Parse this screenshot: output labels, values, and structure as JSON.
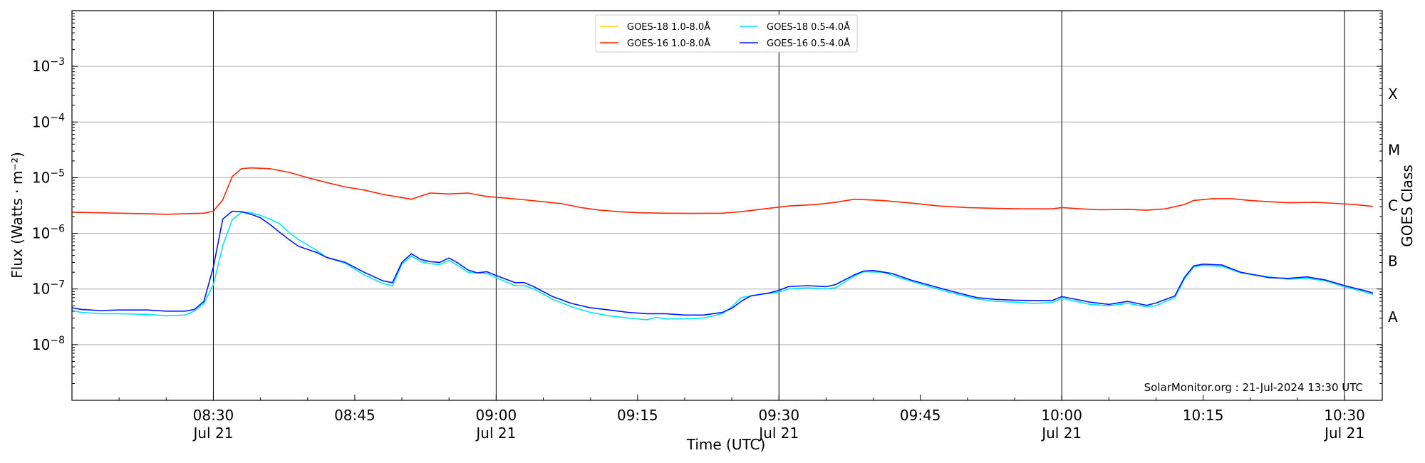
{
  "chart_data": {
    "type": "line",
    "title": "",
    "xlabel": "Time (UTC)",
    "ylabel": "Flux (Watts · m⁻²)",
    "ylabel_right": "GOES Class",
    "y_scale": "log",
    "ylim": [
      1e-09,
      0.01
    ],
    "xlim": [
      "2024-07-21 08:15",
      "2024-07-21 10:34"
    ],
    "grid": "horizontal at decades",
    "legend_position": "top-center",
    "credit": "SolarMonitor.org : 21-Jul-2024 13:30 UTC",
    "x_ticks": [
      {
        "time": "08:30",
        "time_label": "08:30",
        "date_label": "Jul 21",
        "major": true
      },
      {
        "time": "08:45",
        "time_label": "08:45",
        "date_label": "",
        "major": false
      },
      {
        "time": "09:00",
        "time_label": "09:00",
        "date_label": "Jul 21",
        "major": true
      },
      {
        "time": "09:15",
        "time_label": "09:15",
        "date_label": "",
        "major": false
      },
      {
        "time": "09:30",
        "time_label": "09:30",
        "date_label": "Jul 21",
        "major": true
      },
      {
        "time": "09:45",
        "time_label": "09:45",
        "date_label": "",
        "major": false
      },
      {
        "time": "10:00",
        "time_label": "10:00",
        "date_label": "Jul 21",
        "major": true
      },
      {
        "time": "10:15",
        "time_label": "10:15",
        "date_label": "",
        "major": false
      },
      {
        "time": "10:30",
        "time_label": "10:30",
        "date_label": "Jul 21",
        "major": true
      }
    ],
    "y_ticks": [
      {
        "value": 1e-08,
        "base": "10",
        "exp": "−8"
      },
      {
        "value": 1e-07,
        "base": "10",
        "exp": "−7"
      },
      {
        "value": 1e-06,
        "base": "10",
        "exp": "−6"
      },
      {
        "value": 1e-05,
        "base": "10",
        "exp": "−5"
      },
      {
        "value": 0.0001,
        "base": "10",
        "exp": "−4"
      },
      {
        "value": 0.001,
        "base": "10",
        "exp": "−3"
      }
    ],
    "goes_classes": [
      {
        "label": "A",
        "value": 1e-08
      },
      {
        "label": "B",
        "value": 1e-07
      },
      {
        "label": "C",
        "value": 1e-06
      },
      {
        "label": "M",
        "value": 1e-05
      },
      {
        "label": "X",
        "value": 0.0001
      }
    ],
    "series": [
      {
        "name": "GOES-18 1.0-8.0Å",
        "color": "#ffd700",
        "points": []
      },
      {
        "name": "GOES-16 1.0-8.0Å",
        "color": "#ff2400",
        "points": [
          [
            "08:15",
            2.4e-06
          ],
          [
            "08:20",
            2.3e-06
          ],
          [
            "08:23",
            2.25e-06
          ],
          [
            "08:25",
            2.2e-06
          ],
          [
            "08:29",
            2.3e-06
          ],
          [
            "08:30",
            2.5e-06
          ],
          [
            "08:31",
            4e-06
          ],
          [
            "08:32",
            1.05e-05
          ],
          [
            "08:33",
            1.45e-05
          ],
          [
            "08:34",
            1.5e-05
          ],
          [
            "08:36",
            1.45e-05
          ],
          [
            "08:38",
            1.25e-05
          ],
          [
            "08:40",
            1e-05
          ],
          [
            "08:42",
            8.2e-06
          ],
          [
            "08:44",
            6.8e-06
          ],
          [
            "08:46",
            6e-06
          ],
          [
            "08:48",
            5e-06
          ],
          [
            "08:50",
            4.4e-06
          ],
          [
            "08:51",
            4.1e-06
          ],
          [
            "08:53",
            5.3e-06
          ],
          [
            "08:55",
            5.1e-06
          ],
          [
            "08:57",
            5.3e-06
          ],
          [
            "08:59",
            4.6e-06
          ],
          [
            "09:01",
            4.3e-06
          ],
          [
            "09:03",
            4e-06
          ],
          [
            "09:05",
            3.7e-06
          ],
          [
            "09:07",
            3.4e-06
          ],
          [
            "09:09",
            2.9e-06
          ],
          [
            "09:11",
            2.6e-06
          ],
          [
            "09:13",
            2.45e-06
          ],
          [
            "09:15",
            2.35e-06
          ],
          [
            "09:18",
            2.3e-06
          ],
          [
            "09:21",
            2.28e-06
          ],
          [
            "09:24",
            2.3e-06
          ],
          [
            "09:26",
            2.45e-06
          ],
          [
            "09:28",
            2.7e-06
          ],
          [
            "09:31",
            3.1e-06
          ],
          [
            "09:34",
            3.3e-06
          ],
          [
            "09:36",
            3.6e-06
          ],
          [
            "09:38",
            4.1e-06
          ],
          [
            "09:41",
            3.9e-06
          ],
          [
            "09:44",
            3.5e-06
          ],
          [
            "09:47",
            3.1e-06
          ],
          [
            "09:50",
            2.9e-06
          ],
          [
            "09:53",
            2.8e-06
          ],
          [
            "09:56",
            2.75e-06
          ],
          [
            "09:59",
            2.75e-06
          ],
          [
            "10:00",
            2.9e-06
          ],
          [
            "10:02",
            2.75e-06
          ],
          [
            "10:04",
            2.65e-06
          ],
          [
            "10:07",
            2.7e-06
          ],
          [
            "10:09",
            2.6e-06
          ],
          [
            "10:11",
            2.75e-06
          ],
          [
            "10:13",
            3.3e-06
          ],
          [
            "10:14",
            3.9e-06
          ],
          [
            "10:16",
            4.2e-06
          ],
          [
            "10:18",
            4.2e-06
          ],
          [
            "10:20",
            3.9e-06
          ],
          [
            "10:22",
            3.7e-06
          ],
          [
            "10:24",
            3.55e-06
          ],
          [
            "10:27",
            3.6e-06
          ],
          [
            "10:29",
            3.45e-06
          ],
          [
            "10:31",
            3.3e-06
          ],
          [
            "10:33",
            3.05e-06
          ]
        ]
      },
      {
        "name": "GOES-18 0.5-4.0Å",
        "color": "#00e5ff",
        "points": [
          [
            "08:15",
            4.1e-08
          ],
          [
            "08:16",
            3.8e-08
          ],
          [
            "08:18",
            3.6e-08
          ],
          [
            "08:20",
            3.6e-08
          ],
          [
            "08:23",
            3.5e-08
          ],
          [
            "08:25",
            3.3e-08
          ],
          [
            "08:27",
            3.4e-08
          ],
          [
            "08:28",
            4e-08
          ],
          [
            "08:29",
            5.5e-08
          ],
          [
            "08:30",
            1.2e-07
          ],
          [
            "08:31",
            6e-07
          ],
          [
            "08:32",
            1.75e-06
          ],
          [
            "08:33",
            2.4e-06
          ],
          [
            "08:34",
            2.35e-06
          ],
          [
            "08:35",
            2.1e-06
          ],
          [
            "08:36",
            1.8e-06
          ],
          [
            "08:37",
            1.5e-06
          ],
          [
            "08:38",
            1.05e-06
          ],
          [
            "08:39",
            7.8e-07
          ],
          [
            "08:41",
            4.9e-07
          ],
          [
            "08:42",
            3.7e-07
          ],
          [
            "08:44",
            2.9e-07
          ],
          [
            "08:46",
            1.8e-07
          ],
          [
            "08:48",
            1.25e-07
          ],
          [
            "08:49",
            1.15e-07
          ],
          [
            "08:50",
            2.8e-07
          ],
          [
            "08:51",
            3.9e-07
          ],
          [
            "08:52",
            3.1e-07
          ],
          [
            "08:53",
            2.85e-07
          ],
          [
            "08:54",
            2.75e-07
          ],
          [
            "08:55",
            3.25e-07
          ],
          [
            "08:56",
            2.6e-07
          ],
          [
            "08:57",
            2e-07
          ],
          [
            "08:59",
            1.9e-07
          ],
          [
            "09:00",
            1.6e-07
          ],
          [
            "09:02",
            1.15e-07
          ],
          [
            "09:03",
            1.15e-07
          ],
          [
            "09:04",
            1e-07
          ],
          [
            "09:06",
            6.5e-08
          ],
          [
            "09:08",
            4.8e-08
          ],
          [
            "09:10",
            3.8e-08
          ],
          [
            "09:12",
            3.3e-08
          ],
          [
            "09:14",
            3e-08
          ],
          [
            "09:16",
            2.8e-08
          ],
          [
            "09:17",
            3.1e-08
          ],
          [
            "09:18",
            2.9e-08
          ],
          [
            "09:20",
            2.9e-08
          ],
          [
            "09:22",
            3e-08
          ],
          [
            "09:24",
            3.6e-08
          ],
          [
            "09:25",
            4.8e-08
          ],
          [
            "09:26",
            7e-08
          ],
          [
            "09:28",
            8e-08
          ],
          [
            "09:30",
            8.8e-08
          ],
          [
            "09:31",
            1e-07
          ],
          [
            "09:33",
            1.05e-07
          ],
          [
            "09:35",
            1e-07
          ],
          [
            "09:36",
            1.05e-07
          ],
          [
            "09:38",
            1.7e-07
          ],
          [
            "09:39",
            2.05e-07
          ],
          [
            "09:41",
            2e-07
          ],
          [
            "09:43",
            1.55e-07
          ],
          [
            "09:46",
            1.1e-07
          ],
          [
            "09:48",
            8.8e-08
          ],
          [
            "09:51",
            6.6e-08
          ],
          [
            "09:53",
            6e-08
          ],
          [
            "09:55",
            5.8e-08
          ],
          [
            "09:57",
            5.5e-08
          ],
          [
            "09:59",
            5.7e-08
          ],
          [
            "10:00",
            6.8e-08
          ],
          [
            "10:03",
            5.3e-08
          ],
          [
            "10:05",
            5e-08
          ],
          [
            "10:07",
            5.5e-08
          ],
          [
            "10:09",
            4.8e-08
          ],
          [
            "10:10",
            5e-08
          ],
          [
            "10:12",
            7e-08
          ],
          [
            "10:13",
            1.5e-07
          ],
          [
            "10:14",
            2.5e-07
          ],
          [
            "10:15",
            2.65e-07
          ],
          [
            "10:17",
            2.55e-07
          ],
          [
            "10:19",
            1.95e-07
          ],
          [
            "10:22",
            1.65e-07
          ],
          [
            "10:24",
            1.5e-07
          ],
          [
            "10:26",
            1.55e-07
          ],
          [
            "10:28",
            1.4e-07
          ],
          [
            "10:30",
            1.1e-07
          ],
          [
            "10:32",
            9e-08
          ],
          [
            "10:33",
            8e-08
          ]
        ]
      },
      {
        "name": "GOES-16 0.5-4.0Å",
        "color": "#0018ff",
        "points": [
          [
            "08:15",
            4.6e-08
          ],
          [
            "08:16",
            4.3e-08
          ],
          [
            "08:18",
            4.1e-08
          ],
          [
            "08:20",
            4.2e-08
          ],
          [
            "08:23",
            4.2e-08
          ],
          [
            "08:25",
            4e-08
          ],
          [
            "08:27",
            4e-08
          ],
          [
            "08:28",
            4.3e-08
          ],
          [
            "08:29",
            6e-08
          ],
          [
            "08:30",
            2.5e-07
          ],
          [
            "08:31",
            1.8e-06
          ],
          [
            "08:32",
            2.5e-06
          ],
          [
            "08:33",
            2.45e-06
          ],
          [
            "08:34",
            2.2e-06
          ],
          [
            "08:35",
            1.9e-06
          ],
          [
            "08:36",
            1.45e-06
          ],
          [
            "08:37",
            1.05e-06
          ],
          [
            "08:38",
            7.8e-07
          ],
          [
            "08:39",
            5.9e-07
          ],
          [
            "08:41",
            4.5e-07
          ],
          [
            "08:42",
            3.7e-07
          ],
          [
            "08:44",
            3e-07
          ],
          [
            "08:46",
            2e-07
          ],
          [
            "08:48",
            1.4e-07
          ],
          [
            "08:49",
            1.3e-07
          ],
          [
            "08:50",
            3e-07
          ],
          [
            "08:51",
            4.3e-07
          ],
          [
            "08:52",
            3.4e-07
          ],
          [
            "08:53",
            3.1e-07
          ],
          [
            "08:54",
            3e-07
          ],
          [
            "08:55",
            3.6e-07
          ],
          [
            "08:56",
            2.9e-07
          ],
          [
            "08:57",
            2.2e-07
          ],
          [
            "08:58",
            1.95e-07
          ],
          [
            "08:59",
            2.05e-07
          ],
          [
            "09:00",
            1.75e-07
          ],
          [
            "09:02",
            1.3e-07
          ],
          [
            "09:03",
            1.3e-07
          ],
          [
            "09:04",
            1.1e-07
          ],
          [
            "09:06",
            7.3e-08
          ],
          [
            "09:08",
            5.5e-08
          ],
          [
            "09:10",
            4.6e-08
          ],
          [
            "09:12",
            4.2e-08
          ],
          [
            "09:14",
            3.8e-08
          ],
          [
            "09:16",
            3.6e-08
          ],
          [
            "09:18",
            3.6e-08
          ],
          [
            "09:20",
            3.4e-08
          ],
          [
            "09:22",
            3.4e-08
          ],
          [
            "09:24",
            3.8e-08
          ],
          [
            "09:25",
            4.5e-08
          ],
          [
            "09:26",
            6e-08
          ],
          [
            "09:27",
            7.5e-08
          ],
          [
            "09:29",
            8.5e-08
          ],
          [
            "09:30",
            9.5e-08
          ],
          [
            "09:31",
            1.1e-07
          ],
          [
            "09:33",
            1.15e-07
          ],
          [
            "09:35",
            1.1e-07
          ],
          [
            "09:36",
            1.2e-07
          ],
          [
            "09:38",
            1.8e-07
          ],
          [
            "09:39",
            2.1e-07
          ],
          [
            "09:40",
            2.15e-07
          ],
          [
            "09:42",
            1.9e-07
          ],
          [
            "09:44",
            1.45e-07
          ],
          [
            "09:47",
            1.05e-07
          ],
          [
            "09:49",
            8.5e-08
          ],
          [
            "09:51",
            7e-08
          ],
          [
            "09:53",
            6.5e-08
          ],
          [
            "09:55",
            6.3e-08
          ],
          [
            "09:57",
            6.2e-08
          ],
          [
            "09:59",
            6.2e-08
          ],
          [
            "10:00",
            7.3e-08
          ],
          [
            "10:03",
            5.8e-08
          ],
          [
            "10:05",
            5.3e-08
          ],
          [
            "10:07",
            6e-08
          ],
          [
            "10:09",
            5.1e-08
          ],
          [
            "10:10",
            5.6e-08
          ],
          [
            "10:12",
            7.5e-08
          ],
          [
            "10:13",
            1.6e-07
          ],
          [
            "10:14",
            2.6e-07
          ],
          [
            "10:15",
            2.8e-07
          ],
          [
            "10:17",
            2.7e-07
          ],
          [
            "10:19",
            2e-07
          ],
          [
            "10:22",
            1.6e-07
          ],
          [
            "10:24",
            1.55e-07
          ],
          [
            "10:26",
            1.65e-07
          ],
          [
            "10:28",
            1.45e-07
          ],
          [
            "10:30",
            1.15e-07
          ],
          [
            "10:32",
            9.5e-08
          ],
          [
            "10:33",
            8.5e-08
          ]
        ]
      }
    ]
  }
}
